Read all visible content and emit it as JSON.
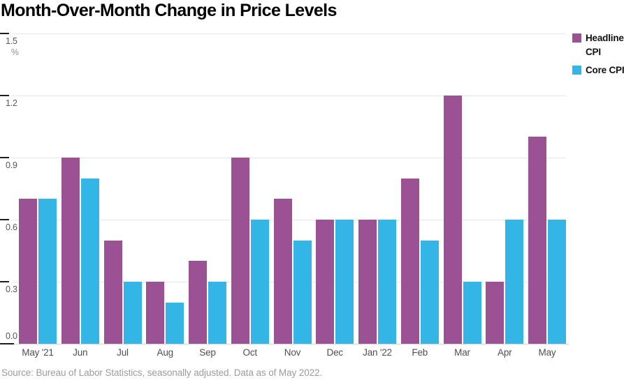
{
  "title": "Month-Over-Month Change in Price Levels",
  "source": "Source: Bureau of Labor Statistics, seasonally adjusted. Data as of May 2022.",
  "legend": [
    {
      "label": "Headline CPI",
      "color": "#9a5294"
    },
    {
      "label": "Core CPI",
      "color": "#33b6e6"
    }
  ],
  "y_axis": {
    "unit": "%",
    "ticks": [
      {
        "label": "1.5",
        "value": 1.5
      },
      {
        "label": "1.2",
        "value": 1.2
      },
      {
        "label": "0.9",
        "value": 0.9
      },
      {
        "label": "0.6",
        "value": 0.6
      },
      {
        "label": "0.3",
        "value": 0.3
      },
      {
        "label": "0.0",
        "value": 0.0
      }
    ]
  },
  "chart_data": {
    "type": "bar",
    "title": "Month-Over-Month Change in Price Levels",
    "xlabel": "",
    "ylabel": "%",
    "ylim": [
      0,
      1.5
    ],
    "grid": true,
    "legend_position": "top-right",
    "categories": [
      "May '21",
      "Jun",
      "Jul",
      "Aug",
      "Sep",
      "Oct",
      "Nov",
      "Dec",
      "Jan '22",
      "Feb",
      "Mar",
      "Apr",
      "May"
    ],
    "series": [
      {
        "name": "Headline CPI",
        "color": "#9a5294",
        "values": [
          0.7,
          0.9,
          0.5,
          0.3,
          0.4,
          0.9,
          0.7,
          0.6,
          0.6,
          0.8,
          1.2,
          0.3,
          1.0
        ]
      },
      {
        "name": "Core CPI",
        "color": "#33b6e6",
        "values": [
          0.7,
          0.8,
          0.3,
          0.2,
          0.3,
          0.6,
          0.5,
          0.6,
          0.6,
          0.5,
          0.3,
          0.6,
          0.6
        ]
      }
    ]
  }
}
